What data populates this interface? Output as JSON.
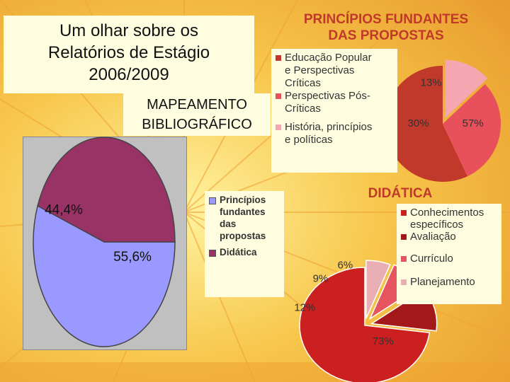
{
  "slide": {
    "title_lines": [
      "Um olhar sobre os",
      "Relatórios de Estágio",
      "2006/2009"
    ],
    "subtitle_lines": [
      "MAPEAMENTO",
      "BIBLIOGRÁFICO"
    ]
  },
  "chart_data": [
    {
      "type": "pie",
      "title": "",
      "categories": [
        "Princípios fundantes das propostas",
        "Didática"
      ],
      "values": [
        55.6,
        44.4
      ],
      "labels": [
        "55,6%",
        "44,4%"
      ],
      "colors": [
        "#9999ff",
        "#993366"
      ],
      "legend": "right"
    },
    {
      "type": "pie",
      "title": "PRINCÍPIOS FUNDANTES DAS PROPOSTAS",
      "title_lines": [
        "PRINCÍPIOS FUNDANTES",
        "DAS PROPOSTAS"
      ],
      "categories": [
        "Educação Popular e Perspectivas Críticas",
        "Perspectivas Pós-Críticas",
        "História, princípios e políticas"
      ],
      "legend_lines": [
        "Educação Popular\ne Perspectivas\nCríticas",
        "Perspectivas Pós-\nCríticas",
        "História, princípios\ne políticas"
      ],
      "values": [
        57,
        30,
        13
      ],
      "labels": [
        "57%",
        "30%",
        "13%"
      ],
      "colors": [
        "#c0392b",
        "#e8505b",
        "#f4a7b0"
      ],
      "legend": "left"
    },
    {
      "type": "pie",
      "title": "DIDÁTICA",
      "categories": [
        "Conhecimentos específicos",
        "Avaliação",
        "Currículo",
        "Planejamento"
      ],
      "legend_lines": [
        "Conhecimentos\nespecíficos",
        "Avaliação",
        "Currículo",
        "Planejamento"
      ],
      "values": [
        73,
        12,
        9,
        6
      ],
      "labels": [
        "73%",
        "12%",
        "9%",
        "6%"
      ],
      "colors": [
        "#cc1f1f",
        "#a31818",
        "#e6555f",
        "#e9aeb3"
      ],
      "legend": "right"
    }
  ]
}
